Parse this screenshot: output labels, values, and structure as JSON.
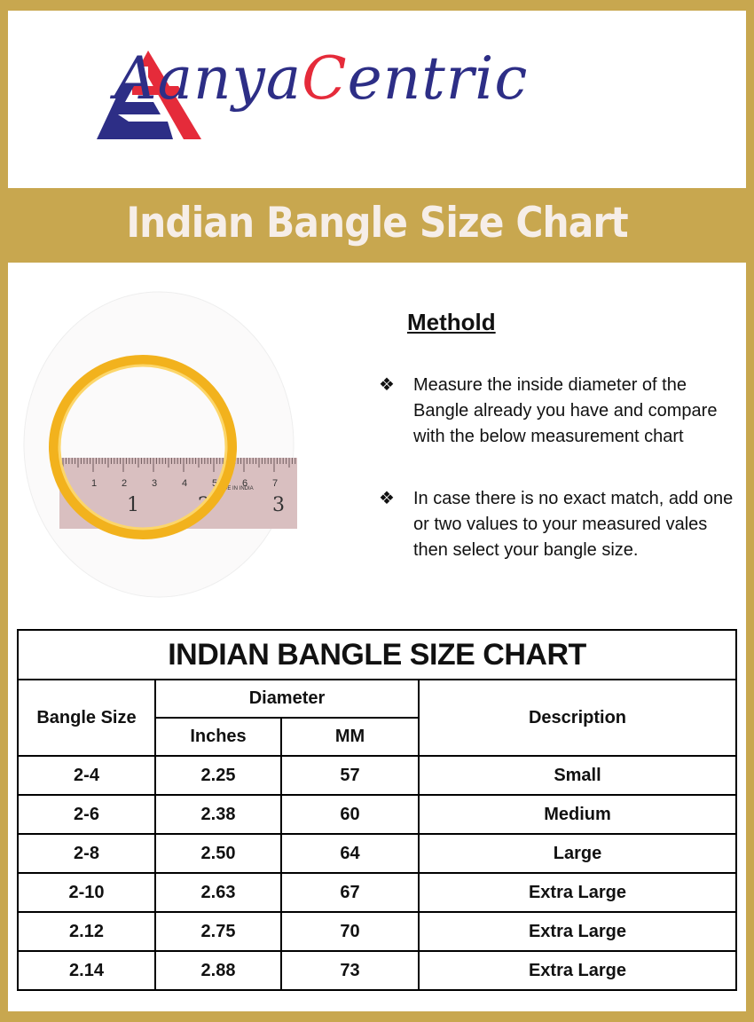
{
  "logo": {
    "brand": "AanyaCentric",
    "colors": {
      "blue": "#2d2e86",
      "red": "#e52b3a"
    }
  },
  "banner": {
    "title": "Indian Bangle Size Chart"
  },
  "photo": {
    "ruler_numbers": [
      "1",
      "2",
      "3",
      "4",
      "5",
      "6",
      "7",
      "8"
    ],
    "ruler_inches": [
      "1",
      "2",
      "3"
    ],
    "ruler_label": "MADE IN INDIA"
  },
  "method": {
    "heading": "Methold",
    "bullets": [
      "Measure the inside diameter of the Bangle already you have and compare with the below measurement chart",
      "In case there is no exact match, add one or two values to your measured vales then select your bangle size."
    ]
  },
  "table": {
    "title": "INDIAN BANGLE SIZE CHART",
    "headers": {
      "size": "Bangle Size",
      "diameter": "Diameter",
      "inches": "Inches",
      "mm": "MM",
      "description": "Description"
    },
    "rows": [
      {
        "size": "2-4",
        "inches": "2.25",
        "mm": "57",
        "desc": "Small"
      },
      {
        "size": "2-6",
        "inches": "2.38",
        "mm": "60",
        "desc": "Medium"
      },
      {
        "size": "2-8",
        "inches": "2.50",
        "mm": "64",
        "desc": "Large"
      },
      {
        "size": "2-10",
        "inches": "2.63",
        "mm": "67",
        "desc": "Extra Large"
      },
      {
        "size": "2.12",
        "inches": "2.75",
        "mm": "70",
        "desc": "Extra Large"
      },
      {
        "size": "2.14",
        "inches": "2.88",
        "mm": "73",
        "desc": "Extra Large"
      }
    ]
  },
  "colors": {
    "gold": "#c8a74f"
  }
}
